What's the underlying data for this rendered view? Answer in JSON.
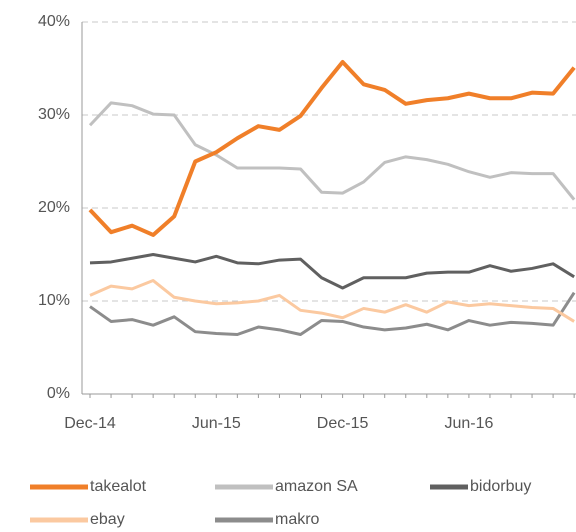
{
  "chart_data": {
    "type": "line",
    "categories": [
      "Dec-14",
      null,
      null,
      null,
      null,
      null,
      "Jun-15",
      null,
      null,
      null,
      null,
      null,
      "Dec-15",
      null,
      null,
      null,
      null,
      null,
      "Jun-16",
      null,
      null,
      null,
      null,
      null
    ],
    "series": [
      {
        "name": "takealot",
        "color": "#f07f29",
        "values": [
          19.8,
          17.4,
          18.1,
          17.1,
          19.1,
          25.0,
          26.0,
          27.5,
          28.8,
          28.4,
          29.9,
          32.9,
          35.7,
          33.3,
          32.7,
          31.2,
          31.6,
          31.8,
          32.3,
          31.8,
          31.8,
          32.4,
          32.3,
          35.1
        ]
      },
      {
        "name": "amazon SA",
        "color": "#c0c0c0",
        "values": [
          28.9,
          31.3,
          31.0,
          30.1,
          30.0,
          26.8,
          25.7,
          24.3,
          24.3,
          24.3,
          24.2,
          21.7,
          21.6,
          22.8,
          24.9,
          25.5,
          25.2,
          24.7,
          23.9,
          23.3,
          23.8,
          23.7,
          23.7,
          20.9
        ]
      },
      {
        "name": "bidorbuy",
        "color": "#606060",
        "values": [
          14.1,
          14.2,
          14.6,
          15.0,
          14.6,
          14.2,
          14.8,
          14.1,
          14.0,
          14.4,
          14.5,
          12.5,
          11.4,
          12.5,
          12.5,
          12.5,
          13.0,
          13.1,
          13.1,
          13.8,
          13.2,
          13.5,
          14.0,
          12.6
        ]
      },
      {
        "name": "ebay",
        "color": "#fbc9a0",
        "values": [
          10.6,
          11.6,
          11.3,
          12.2,
          10.4,
          10.0,
          9.7,
          9.8,
          10.0,
          10.6,
          9.0,
          8.7,
          8.2,
          9.2,
          8.8,
          9.6,
          8.8,
          9.9,
          9.5,
          9.7,
          9.5,
          9.3,
          9.2,
          7.8
        ]
      },
      {
        "name": "makro",
        "color": "#8c8c8c",
        "values": [
          9.4,
          7.8,
          8.0,
          7.4,
          8.3,
          6.7,
          6.5,
          6.4,
          7.2,
          6.9,
          6.4,
          7.9,
          7.8,
          7.2,
          6.9,
          7.1,
          7.5,
          6.9,
          7.9,
          7.4,
          7.7,
          7.6,
          7.4,
          10.9
        ]
      }
    ],
    "ylim": [
      0,
      40
    ],
    "yticks": [
      {
        "value": 0,
        "label": "0%"
      },
      {
        "value": 10,
        "label": "10%"
      },
      {
        "value": 20,
        "label": "20%"
      },
      {
        "value": 30,
        "label": "30%"
      },
      {
        "value": 40,
        "label": "40%"
      }
    ],
    "grid": true,
    "legend": "bottom"
  }
}
